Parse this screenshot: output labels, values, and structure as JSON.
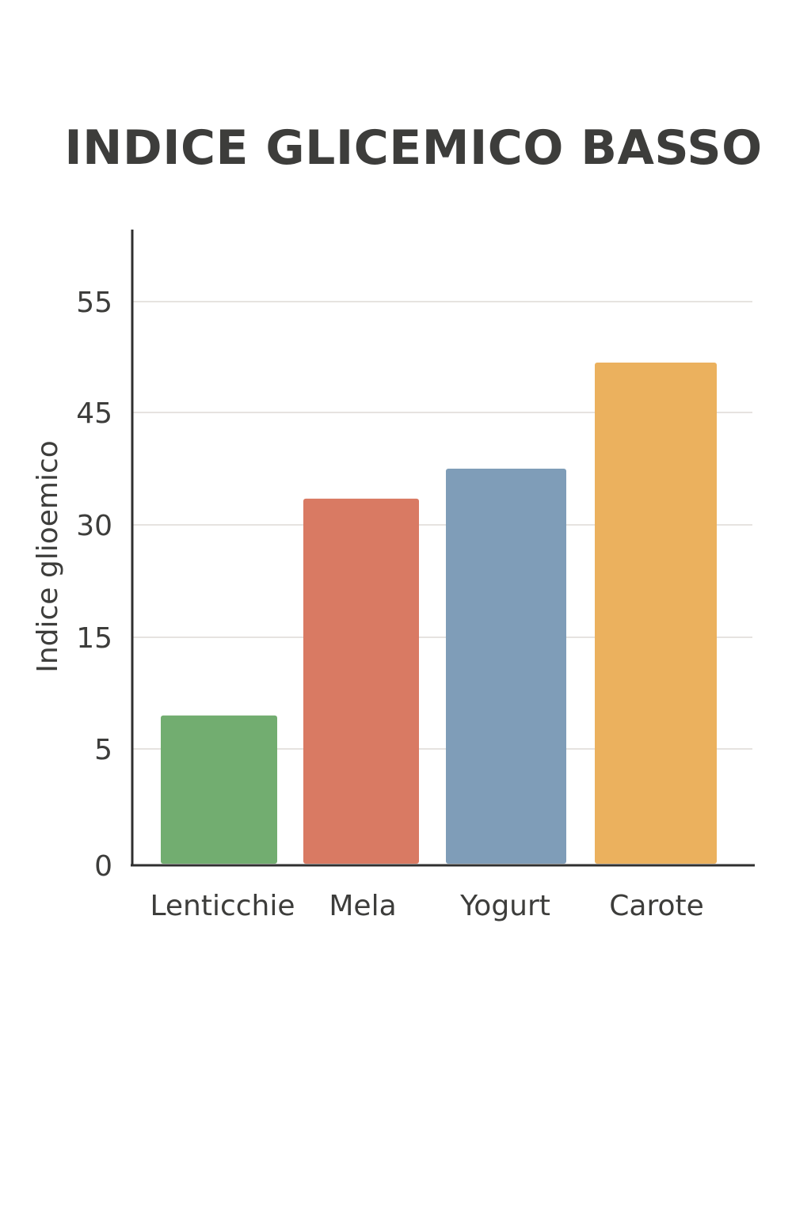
{
  "chart_data": {
    "type": "bar",
    "title": "INDICE GLICEMICO BASSO",
    "xlabel": "",
    "ylabel": "Indice glioemico",
    "categories": [
      "Lenticchie",
      "Mela",
      "Yogurt",
      "Carote"
    ],
    "values": [
      8,
      33.5,
      37.5,
      49.5
    ],
    "colors": [
      "#72ad70",
      "#d97a63",
      "#7f9db8",
      "#ebb15e"
    ],
    "yticks": [
      "0",
      "5",
      "15",
      "30",
      "45",
      "55"
    ],
    "ylim": [
      0,
      55
    ],
    "grid": true,
    "legend": "none"
  }
}
